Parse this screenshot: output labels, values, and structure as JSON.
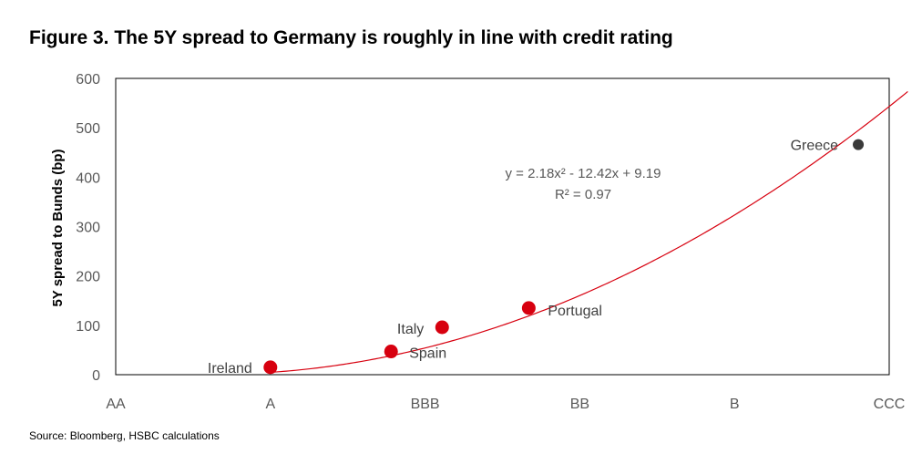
{
  "title": "Figure 3. The 5Y spread to Germany is roughly in line with credit rating",
  "source": "Source: Bloomberg, HSBC calculations",
  "chart_data": {
    "type": "scatter",
    "ylabel": "5Y spread to Bunds (bp)",
    "xlabel": "",
    "x_categories": [
      "AA",
      "A",
      "BBB",
      "BB",
      "B",
      "CCC"
    ],
    "ylim": [
      0,
      600
    ],
    "yticks": [
      0,
      100,
      200,
      300,
      400,
      500,
      600
    ],
    "grid": false,
    "points": [
      {
        "label": "Ireland",
        "x": 2.0,
        "y": 15,
        "color": "#d7000f"
      },
      {
        "label": "Spain",
        "x": 2.78,
        "y": 47,
        "color": "#d7000f"
      },
      {
        "label": "Italy",
        "x": 3.11,
        "y": 96,
        "color": "#d7000f"
      },
      {
        "label": "Portugal",
        "x": 3.67,
        "y": 135,
        "color": "#d7000f"
      },
      {
        "label": "Greece",
        "x": 5.8,
        "y": 466,
        "color": "#3a3a3a"
      }
    ],
    "trendline": {
      "equation": "y = 2.18x² - 12.42x + 9.19",
      "r2": "R² = 0.97",
      "color": "#d7000f"
    }
  }
}
